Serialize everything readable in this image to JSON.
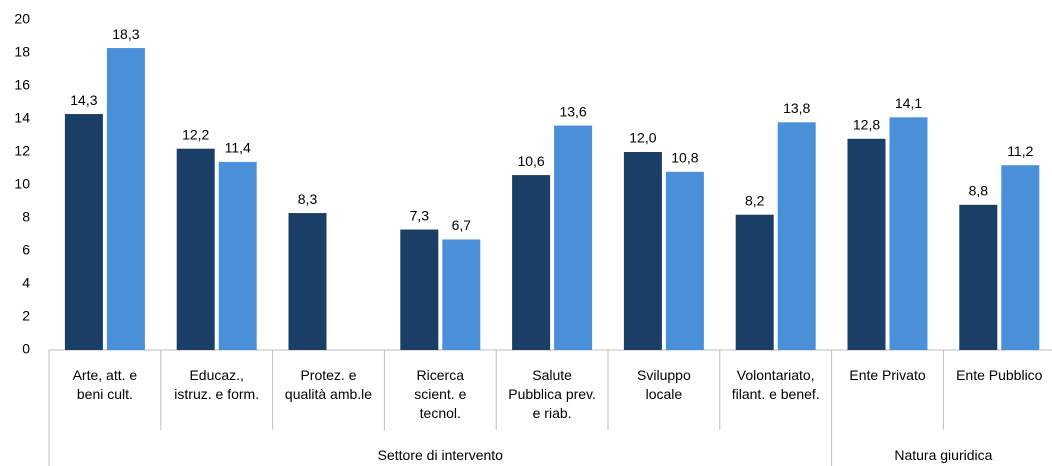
{
  "chart_data": {
    "type": "bar",
    "groups": [
      {
        "label": "Settore di intervento",
        "categories": [
          "Arte, att. e\nbeni cult.",
          "Educaz.,\nistruz. e form.",
          "Protez. e\nqualità amb.le",
          "Ricerca\nscient. e\ntecnol.",
          "Salute\nPubblica prev.\ne riab.",
          "Sviluppo\nlocale",
          "Volontariato,\nfilant. e benef."
        ]
      },
      {
        "label": "Natura giuridica",
        "categories": [
          "Ente Privato",
          "Ente Pubblico"
        ]
      }
    ],
    "series": [
      {
        "color": "#1b3e66",
        "values": [
          14.3,
          12.2,
          8.3,
          7.3,
          10.6,
          12.0,
          8.2,
          12.8,
          8.8
        ],
        "value_labels": [
          "14,3",
          "12,2",
          "8,3",
          "7,3",
          "10,6",
          "12,0",
          "8,2",
          "12,8",
          "8,8"
        ]
      },
      {
        "color": "#4a90d9",
        "values": [
          18.3,
          11.4,
          null,
          6.7,
          13.6,
          10.8,
          13.8,
          14.1,
          11.2
        ],
        "value_labels": [
          "18,3",
          "11,4",
          null,
          "6,7",
          "13,6",
          "10,8",
          "13,8",
          "14,1",
          "11,2"
        ]
      }
    ],
    "ylim": [
      0,
      20
    ],
    "yticks": [
      0,
      2,
      4,
      6,
      8,
      10,
      12,
      14,
      16,
      18,
      20
    ],
    "grid": false
  }
}
